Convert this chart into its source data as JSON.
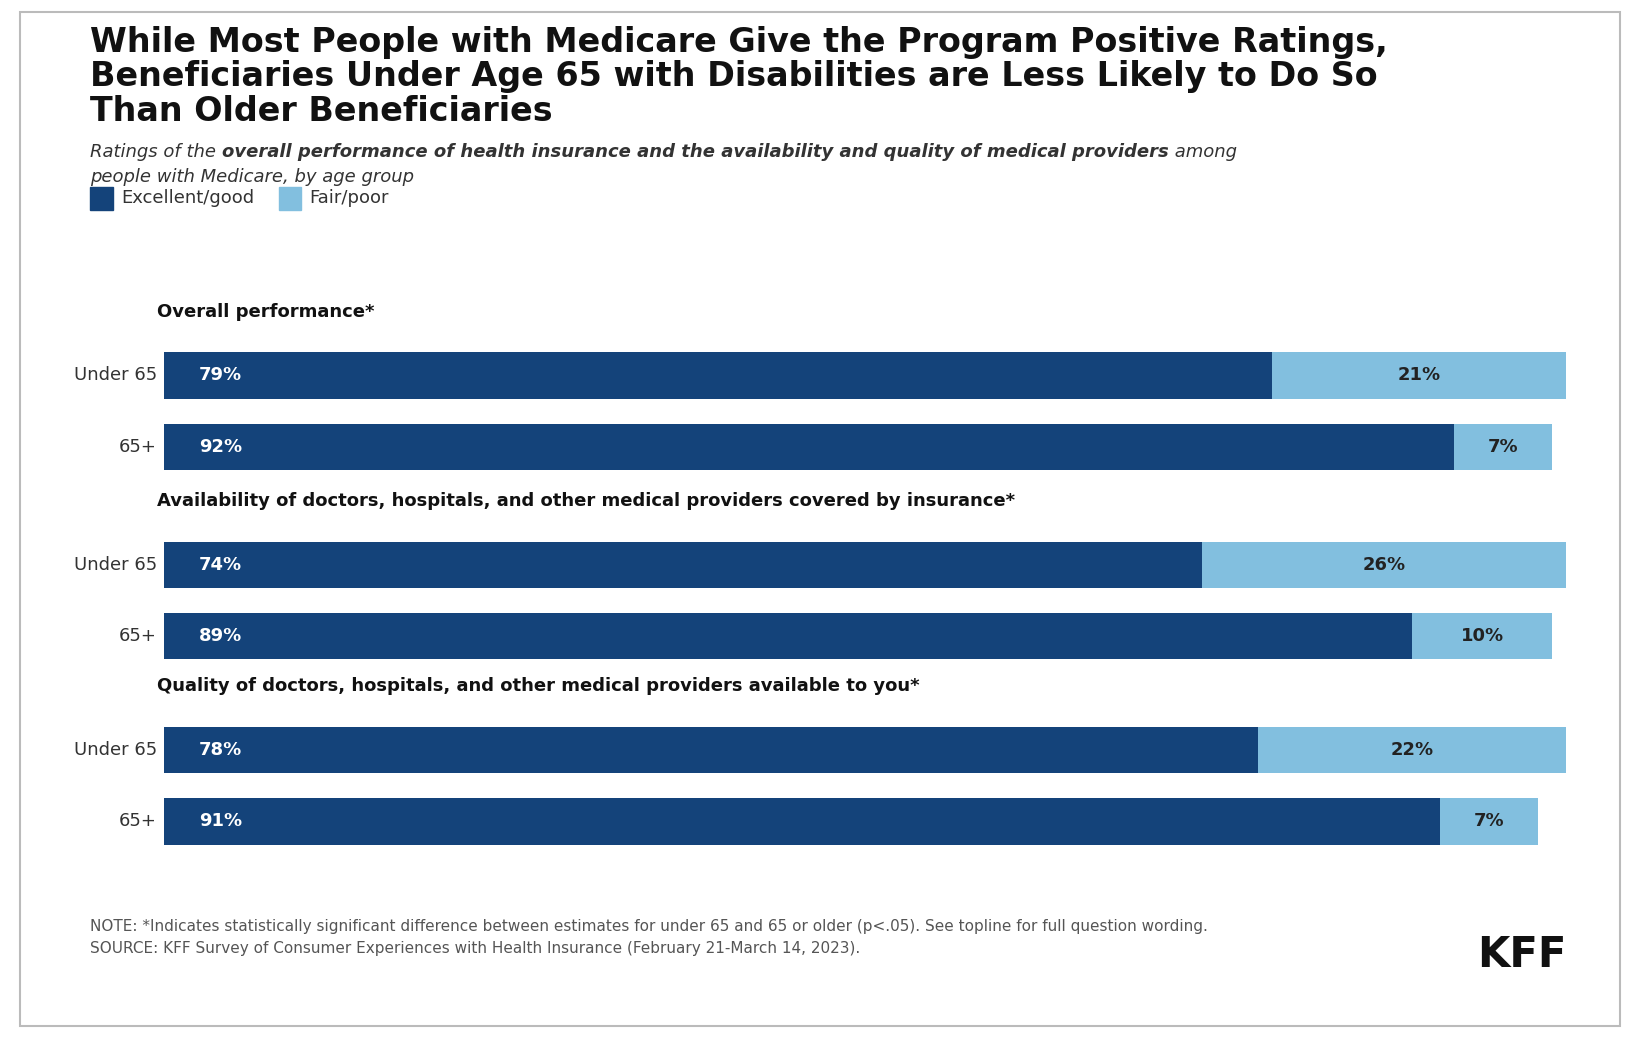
{
  "title_line1": "While Most People with Medicare Give the Program Positive Ratings,",
  "title_line2": "Beneficiaries Under Age 65 with Disabilities are Less Likely to Do So",
  "title_line3": "Than Older Beneficiaries",
  "subtitle_part1": "Ratings of the ",
  "subtitle_bold": "overall performance of health insurance and the availability and quality of medical providers",
  "subtitle_part2": " among people with Medicare, by age group",
  "background_color": "#ffffff",
  "dark_blue": "#14437a",
  "light_blue": "#82bfdf",
  "legend_labels": [
    "Excellent/good",
    "Fair/poor"
  ],
  "sections": [
    {
      "label": "Overall performance*",
      "rows": [
        {
          "group": "Under 65",
          "excellent": 79,
          "fair": 21
        },
        {
          "group": "65+",
          "excellent": 92,
          "fair": 7
        }
      ]
    },
    {
      "label": "Availability of doctors, hospitals, and other medical providers covered by insurance*",
      "rows": [
        {
          "group": "Under 65",
          "excellent": 74,
          "fair": 26
        },
        {
          "group": "65+",
          "excellent": 89,
          "fair": 10
        }
      ]
    },
    {
      "label": "Quality of doctors, hospitals, and other medical providers available to you*",
      "rows": [
        {
          "group": "Under 65",
          "excellent": 78,
          "fair": 22
        },
        {
          "group": "65+",
          "excellent": 91,
          "fair": 7
        }
      ]
    }
  ],
  "note_line1": "NOTE: *Indicates statistically significant difference between estimates for under 65 and 65 or older (p<.05). See topline for full question wording.",
  "note_line2": "SOURCE: KFF Survey of Consumer Experiences with Health Insurance (February 21-March 14, 2023).",
  "title_fontsize": 24,
  "subtitle_fontsize": 13,
  "legend_fontsize": 13,
  "section_label_fontsize": 13,
  "group_label_fontsize": 13,
  "bar_text_fontsize": 13,
  "note_fontsize": 11,
  "kff_fontsize": 30
}
